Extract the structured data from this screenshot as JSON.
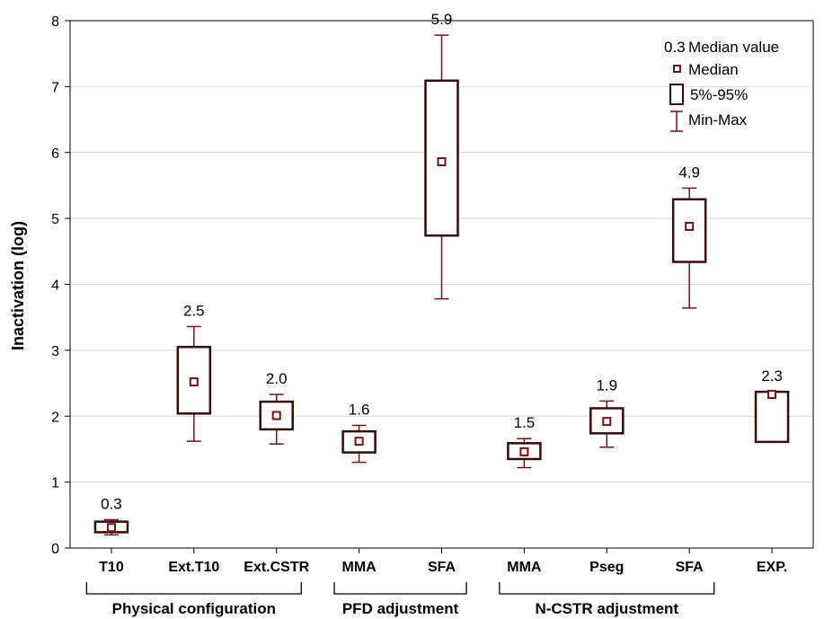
{
  "chart_data": {
    "type": "box",
    "ylabel": "Inactivation (log)",
    "xlabel": "",
    "ylim": [
      0,
      8
    ],
    "yticks": [
      0,
      1,
      2,
      3,
      4,
      5,
      6,
      7,
      8
    ],
    "grid": "horizontal",
    "categories": [
      {
        "label": "T10",
        "group": "Physical configuration",
        "min": 0.2,
        "p5": 0.24,
        "median": 0.31,
        "p95": 0.4,
        "max": 0.43,
        "median_label": "0.3"
      },
      {
        "label": "Ext.T10",
        "group": "Physical configuration",
        "min": 1.62,
        "p5": 2.04,
        "median": 2.52,
        "p95": 3.05,
        "max": 3.36,
        "median_label": "2.5"
      },
      {
        "label": "Ext.CSTR",
        "group": "Physical configuration",
        "min": 1.58,
        "p5": 1.8,
        "median": 2.01,
        "p95": 2.22,
        "max": 2.33,
        "median_label": "2.0"
      },
      {
        "label": "MMA",
        "group": "PFD adjustment",
        "min": 1.3,
        "p5": 1.45,
        "median": 1.62,
        "p95": 1.77,
        "max": 1.86,
        "median_label": "1.6"
      },
      {
        "label": "SFA",
        "group": "PFD adjustment",
        "min": 3.78,
        "p5": 4.74,
        "median": 5.86,
        "p95": 7.09,
        "max": 7.78,
        "median_label": "5.9"
      },
      {
        "label": "MMA",
        "group": "N-CSTR adjustment",
        "min": 1.22,
        "p5": 1.35,
        "median": 1.46,
        "p95": 1.59,
        "max": 1.66,
        "median_label": "1.5"
      },
      {
        "label": "Pseg",
        "group": "N-CSTR adjustment",
        "min": 1.53,
        "p5": 1.74,
        "median": 1.92,
        "p95": 2.12,
        "max": 2.23,
        "median_label": "1.9"
      },
      {
        "label": "SFA",
        "group": "N-CSTR adjustment",
        "min": 3.64,
        "p5": 4.34,
        "median": 4.88,
        "p95": 5.29,
        "max": 5.46,
        "median_label": "4.9"
      },
      {
        "label": "EXP.",
        "group": "",
        "min": 1.61,
        "p5": 1.61,
        "median": 2.33,
        "p95": 2.37,
        "max": 2.37,
        "median_label": "2.3"
      }
    ],
    "groups": [
      "Physical configuration",
      "PFD adjustment",
      "N-CSTR adjustment"
    ],
    "legend": {
      "placement": "top-right",
      "items": [
        {
          "symbol": "0.3",
          "label": "Median value"
        },
        {
          "symbol": "square",
          "label": "Median"
        },
        {
          "symbol": "box",
          "label": "5%-95%"
        },
        {
          "symbol": "whisker",
          "label": "Min-Max"
        }
      ]
    },
    "colors": {
      "series": "#7b1010",
      "box_border": "#3a0a0a",
      "grid": "#d9d9d9",
      "axis": "#000000"
    }
  }
}
